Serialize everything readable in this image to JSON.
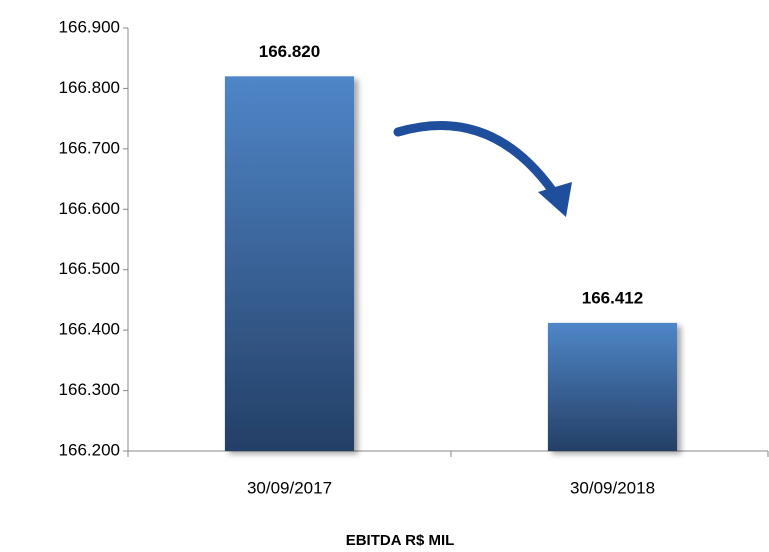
{
  "chart_data": {
    "type": "bar",
    "title": "EBITDA  R$ MIL",
    "categories": [
      "30/09/2017",
      "30/09/2018"
    ],
    "values": [
      166820,
      166412
    ],
    "value_labels": [
      "166.820",
      "166.412"
    ],
    "color": "#3a6aa8",
    "ylim": [
      166200,
      166900
    ],
    "yticks": [
      {
        "value": 166200,
        "label": "166.200"
      },
      {
        "value": 166300,
        "label": "166.300"
      },
      {
        "value": 166400,
        "label": "166.400"
      },
      {
        "value": 166500,
        "label": "166.500"
      },
      {
        "value": 166600,
        "label": "166.600"
      },
      {
        "value": 166700,
        "label": "166.700"
      },
      {
        "value": 166800,
        "label": "166.800"
      },
      {
        "value": 166900,
        "label": "166.900"
      }
    ],
    "grid": false
  }
}
